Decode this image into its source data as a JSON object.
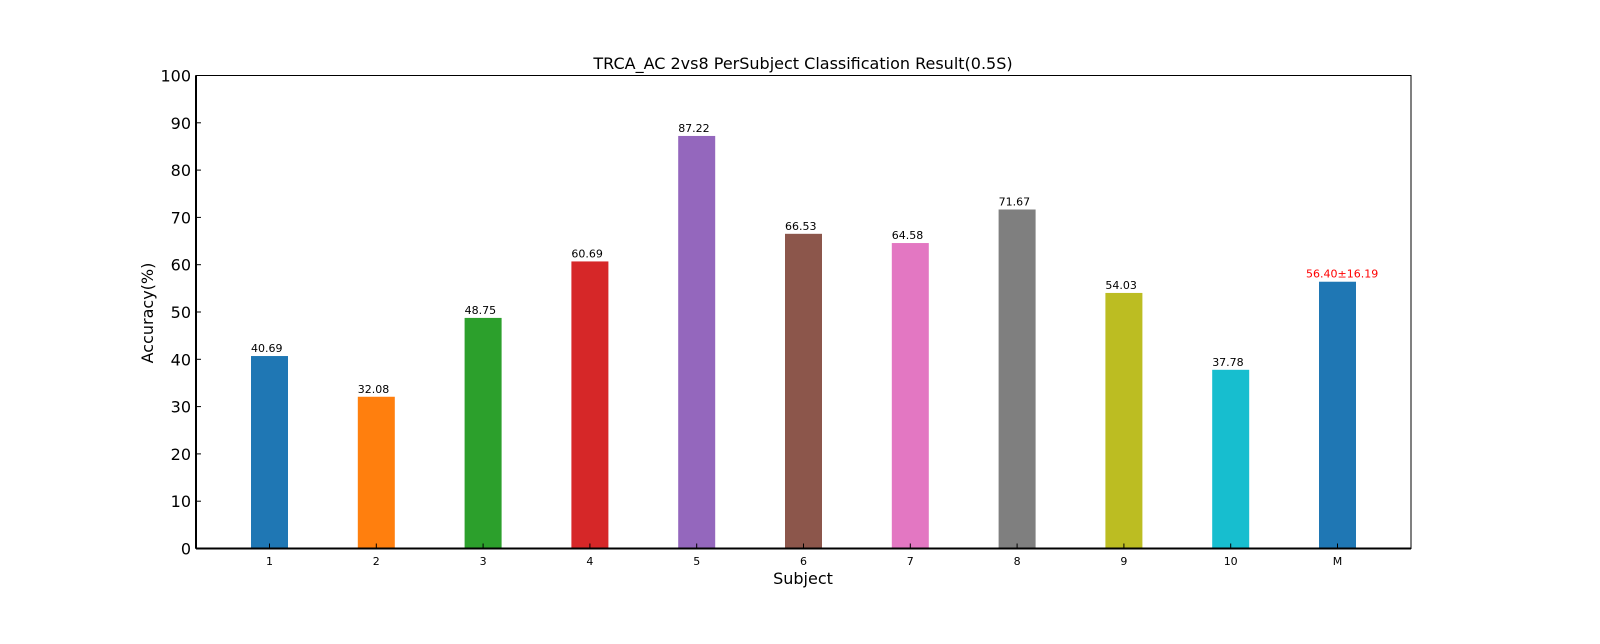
{
  "chart_data": {
    "type": "bar",
    "title": "TRCA_AC 2vs8 PerSubject Classification Result(0.5S)",
    "xlabel": "Subject",
    "ylabel": "Accuracy(%)",
    "ylim": [
      0,
      100
    ],
    "yticks": [
      0,
      10,
      20,
      30,
      40,
      50,
      60,
      70,
      80,
      90,
      100
    ],
    "grid": false,
    "legend": "none",
    "categories": [
      "1",
      "2",
      "3",
      "4",
      "5",
      "6",
      "7",
      "8",
      "9",
      "10",
      "M"
    ],
    "values": [
      40.69,
      32.08,
      48.75,
      60.69,
      87.22,
      66.53,
      64.58,
      71.67,
      54.03,
      37.78,
      56.4
    ],
    "data_labels": [
      "40.69",
      "32.08",
      "48.75",
      "60.69",
      "87.22",
      "66.53",
      "64.58",
      "71.67",
      "54.03",
      "37.78",
      "56.40±16.19"
    ],
    "colors": [
      "#1f77b4",
      "#ff7f0e",
      "#2ca02c",
      "#d62728",
      "#9467bd",
      "#8c564b",
      "#e377c2",
      "#7f7f7f",
      "#bcbd22",
      "#17becf",
      "#1f77b4"
    ],
    "label_colors": [
      "#000000",
      "#000000",
      "#000000",
      "#000000",
      "#000000",
      "#000000",
      "#000000",
      "#000000",
      "#000000",
      "#000000",
      "#ff0000"
    ]
  }
}
